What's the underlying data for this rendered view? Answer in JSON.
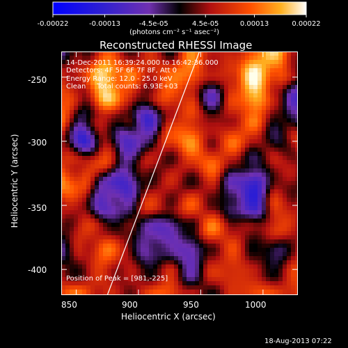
{
  "chart_data": {
    "type": "heatmap",
    "title": "Reconstructed RHESSI Image",
    "xlabel": "Heliocentric X (arcsec)",
    "ylabel": "Heliocentric Y (arcsec)",
    "xlim": [
      838,
      1028
    ],
    "ylim": [
      -420,
      -230
    ],
    "x_ticks": [
      850,
      900,
      950,
      1000
    ],
    "y_ticks": [
      -250,
      -300,
      -350,
      -400
    ],
    "colorbar": {
      "ticks": [
        "-0.00022",
        "-0.00013",
        "-4.5e-05",
        "4.5e-05",
        "0.00013",
        "0.00022"
      ],
      "tick_values": [
        -0.00022,
        -0.00013,
        -4.5e-05,
        4.5e-05,
        0.00013,
        0.00022
      ],
      "range": [
        -0.00022,
        0.00022
      ],
      "unit_label": "(photons cm⁻² s⁻¹ asec⁻²)"
    },
    "annotations": [
      "14-Dec-2011 16:39:24.000 to 16:42:36.000",
      "Detectors: 4F 5F 6F 7F 8F, Att 0",
      "Energy Range: 12.0 - 25.0 keV",
      "Clean     Total counts: 6.93E+03",
      "Position of Peak = [981,-225]"
    ],
    "limb_line": {
      "x": [
        875,
        949
      ],
      "y": [
        -420,
        -230
      ]
    },
    "intensity_grid": [
      [
        -0.2,
        0.1,
        0.5,
        0.2,
        0.3,
        0.1,
        0.6,
        0.4,
        0.2,
        0.7,
        0.8,
        0.3
      ],
      [
        0.3,
        0.4,
        0.9,
        0.6,
        0.4,
        0.5,
        0.7,
        0.2,
        0.5,
        0.95,
        0.6,
        0.1
      ],
      [
        0.5,
        0.2,
        0.9,
        0.5,
        0.1,
        0.6,
        0.3,
        -0.3,
        0.4,
        0.9,
        0.2,
        -0.4
      ],
      [
        0.6,
        -0.1,
        0.3,
        0.1,
        -0.5,
        0.2,
        0.5,
        0.1,
        0.3,
        0.6,
        0.1,
        -0.2
      ],
      [
        0.2,
        -0.6,
        0.2,
        -0.4,
        -0.2,
        0.5,
        0.7,
        0.2,
        0.6,
        0.3,
        -0.1,
        0.4
      ],
      [
        0.4,
        0.3,
        0.5,
        -0.2,
        0.3,
        0.1,
        0.4,
        0.6,
        0.2,
        -0.1,
        0.3,
        0.2
      ],
      [
        0.7,
        0.5,
        -0.3,
        -0.5,
        0.1,
        0.3,
        0.1,
        0.3,
        -0.3,
        -0.6,
        0.2,
        0.1
      ],
      [
        0.3,
        0.2,
        -0.4,
        -0.2,
        0.4,
        0.2,
        0.5,
        0.2,
        -0.2,
        -0.5,
        0.4,
        0.3
      ],
      [
        0.1,
        0.4,
        0.2,
        0.1,
        -0.2,
        -0.4,
        0.1,
        0.6,
        0.3,
        0.1,
        0.5,
        0.2
      ],
      [
        -0.2,
        0.3,
        0.6,
        0.3,
        -0.3,
        -0.1,
        -0.4,
        0.2,
        0.4,
        0.1,
        -0.2,
        0.3
      ],
      [
        0.2,
        0.1,
        0.4,
        0.2,
        0.1,
        0.3,
        -0.2,
        0.3,
        0.5,
        0.2,
        0.1,
        0.4
      ],
      [
        0.5,
        0.6,
        0.3,
        0.2,
        0.4,
        0.6,
        0.2,
        0.1,
        0.3,
        0.6,
        0.4,
        0.5
      ]
    ]
  },
  "footer": {
    "timestamp": "18-Aug-2013 07:22"
  }
}
